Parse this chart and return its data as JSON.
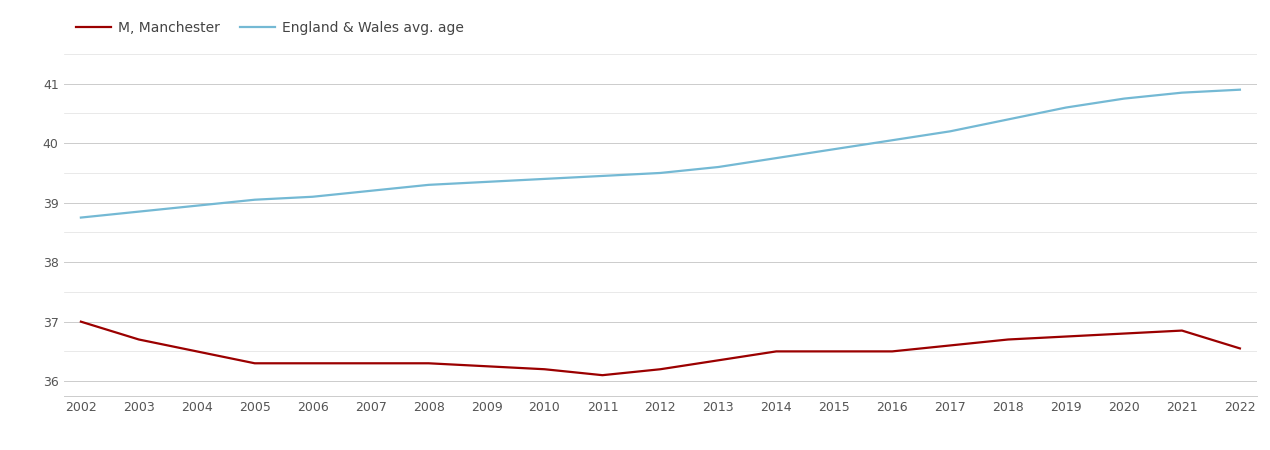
{
  "years": [
    2002,
    2003,
    2004,
    2005,
    2006,
    2007,
    2008,
    2009,
    2010,
    2011,
    2012,
    2013,
    2014,
    2015,
    2016,
    2017,
    2018,
    2019,
    2020,
    2021,
    2022
  ],
  "manchester": [
    37.0,
    36.7,
    36.5,
    36.3,
    36.3,
    36.3,
    36.3,
    36.25,
    36.2,
    36.1,
    36.2,
    36.35,
    36.5,
    36.5,
    36.5,
    36.6,
    36.7,
    36.75,
    36.8,
    36.85,
    36.55
  ],
  "england_wales": [
    38.75,
    38.85,
    38.95,
    39.05,
    39.1,
    39.2,
    39.3,
    39.35,
    39.4,
    39.45,
    39.5,
    39.6,
    39.75,
    39.9,
    40.05,
    40.2,
    40.4,
    40.6,
    40.75,
    40.85,
    40.9
  ],
  "manchester_color": "#9b0000",
  "england_wales_color": "#74b9d4",
  "background_color": "#ffffff",
  "legend_manchester": "M, Manchester",
  "legend_ew": "England & Wales avg. age",
  "ylim": [
    35.75,
    41.5
  ],
  "yticks": [
    36,
    37,
    38,
    39,
    40,
    41
  ],
  "line_width": 1.6
}
